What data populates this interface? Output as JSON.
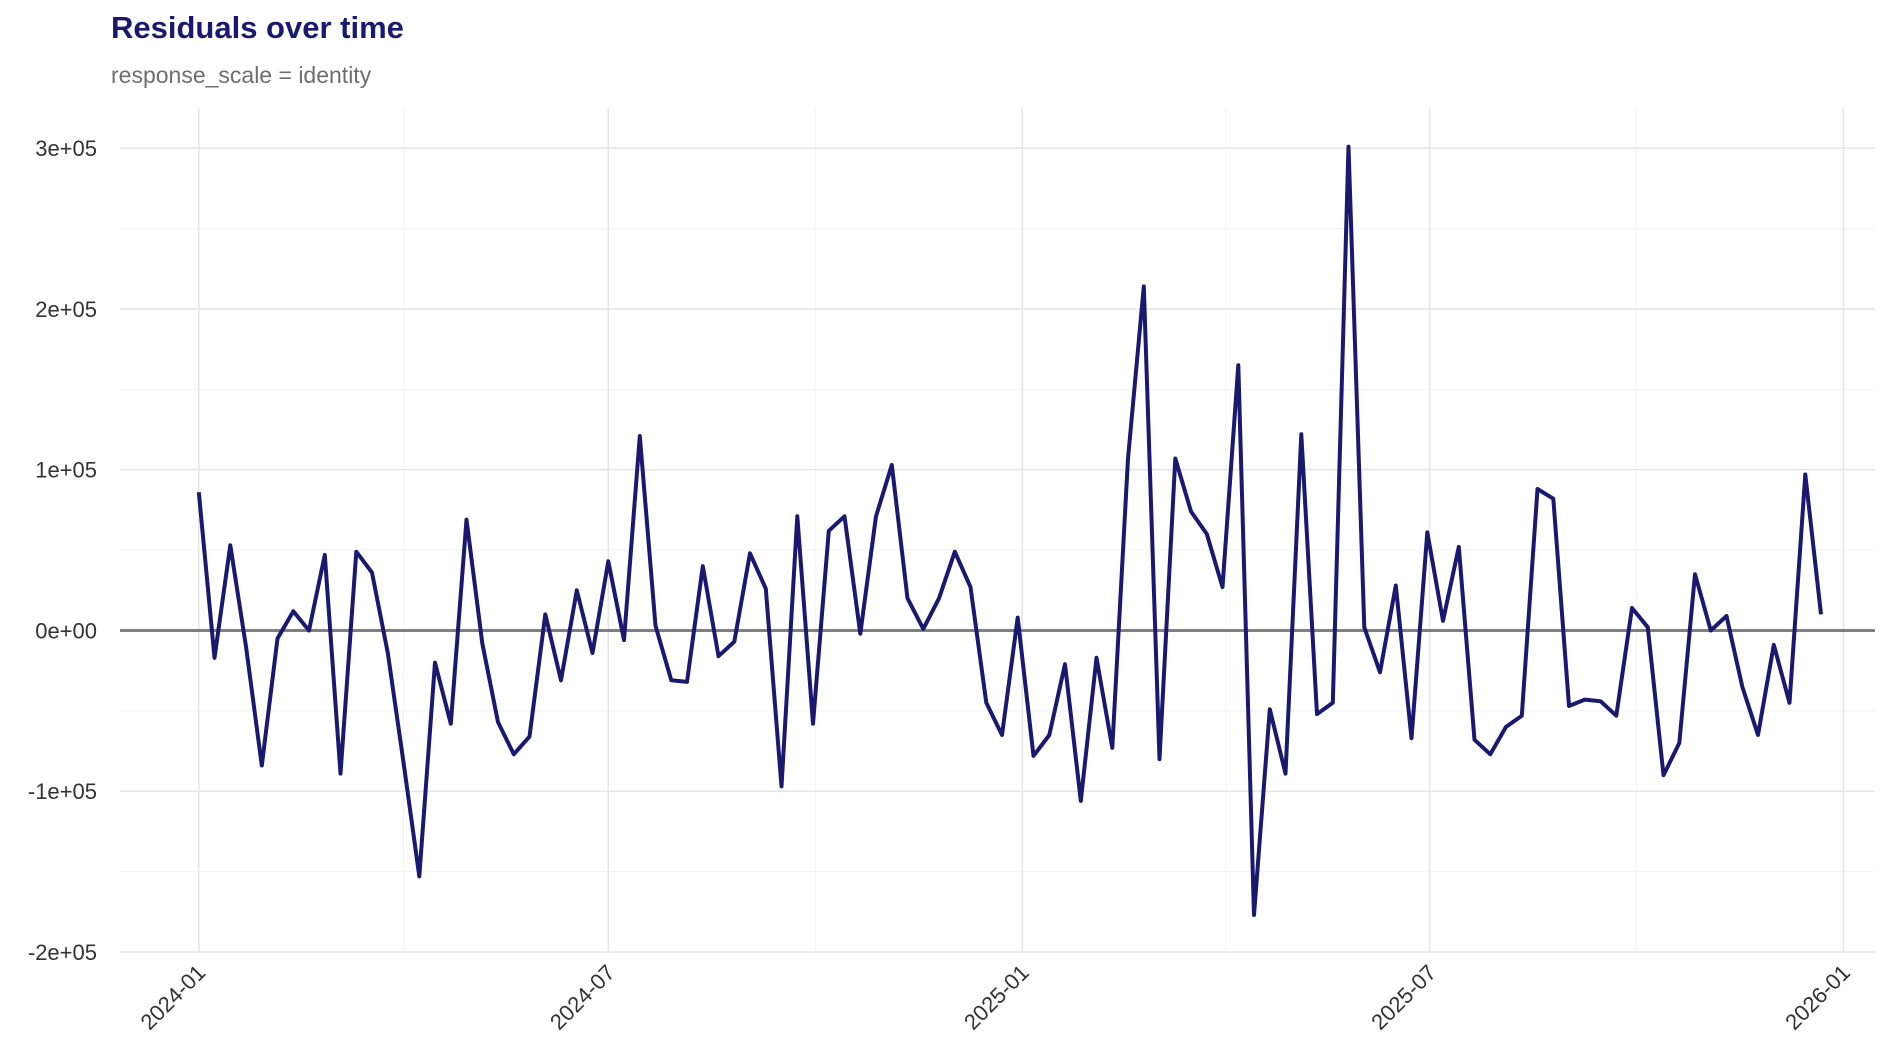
{
  "chart_data": {
    "type": "line",
    "title": "Residuals over time",
    "subtitle": "response_scale = identity",
    "xlabel": "",
    "ylabel": "",
    "x_range": [
      "2023-11-27",
      "2026-01-15"
    ],
    "ylim": [
      -200000,
      325000
    ],
    "x_ticks": [
      "2024-01",
      "2024-07",
      "2025-01",
      "2025-07",
      "2026-01"
    ],
    "x_tick_dates": [
      "2024-01-01",
      "2024-07-01",
      "2025-01-01",
      "2025-07-01",
      "2026-01-01"
    ],
    "y_ticks": [
      -200000,
      -100000,
      0,
      100000,
      200000,
      300000
    ],
    "y_tick_labels": [
      "-2e+05",
      "-1e+05",
      "0e+00",
      "1e+05",
      "2e+05",
      "3e+05"
    ],
    "grid": true,
    "reference_line": 0,
    "line_color": "#191970",
    "reference_color": "#808080",
    "series": [
      {
        "x": [
          "2024-01-01",
          "2024-01-08",
          "2024-01-15",
          "2024-01-22",
          "2024-01-29",
          "2024-02-05",
          "2024-02-12",
          "2024-02-19",
          "2024-02-26",
          "2024-03-04",
          "2024-03-11",
          "2024-03-18",
          "2024-03-25",
          "2024-04-01",
          "2024-04-08",
          "2024-04-15",
          "2024-04-22",
          "2024-04-29",
          "2024-05-06",
          "2024-05-13",
          "2024-05-20",
          "2024-05-27",
          "2024-06-03",
          "2024-06-10",
          "2024-06-17",
          "2024-06-24",
          "2024-07-01",
          "2024-07-08",
          "2024-07-15",
          "2024-07-22",
          "2024-07-29",
          "2024-08-05",
          "2024-08-12",
          "2024-08-19",
          "2024-08-26",
          "2024-09-02",
          "2024-09-09",
          "2024-09-16",
          "2024-09-23",
          "2024-09-30",
          "2024-10-07",
          "2024-10-14",
          "2024-10-21",
          "2024-10-28",
          "2024-11-04",
          "2024-11-11",
          "2024-11-18",
          "2024-11-25",
          "2024-12-02",
          "2024-12-09",
          "2024-12-16",
          "2024-12-23",
          "2024-12-30",
          "2025-01-06",
          "2025-01-13",
          "2025-01-20",
          "2025-01-27",
          "2025-02-03",
          "2025-02-10",
          "2025-02-17",
          "2025-02-24",
          "2025-03-03",
          "2025-03-10",
          "2025-03-17",
          "2025-03-24",
          "2025-03-31",
          "2025-04-07",
          "2025-04-14",
          "2025-04-21",
          "2025-04-28",
          "2025-05-05",
          "2025-05-12",
          "2025-05-19",
          "2025-05-26",
          "2025-06-02",
          "2025-06-09",
          "2025-06-16",
          "2025-06-23",
          "2025-06-30",
          "2025-07-07",
          "2025-07-14",
          "2025-07-21",
          "2025-07-28",
          "2025-08-04",
          "2025-08-11",
          "2025-08-18",
          "2025-08-25",
          "2025-09-01",
          "2025-09-08",
          "2025-09-15",
          "2025-09-22",
          "2025-09-29",
          "2025-10-06",
          "2025-10-13",
          "2025-10-20",
          "2025-10-27",
          "2025-11-03",
          "2025-11-10",
          "2025-11-17",
          "2025-11-24",
          "2025-12-01",
          "2025-12-08",
          "2025-12-15",
          "2025-12-22"
        ],
        "y": [
          86000,
          -17000,
          53000,
          -10000,
          -84000,
          -5000,
          12000,
          0,
          47000,
          -89000,
          49000,
          36000,
          -14000,
          -82000,
          -153000,
          -20000,
          -58000,
          69000,
          -8000,
          -57000,
          -77000,
          -66000,
          10000,
          -31000,
          25000,
          -14000,
          43000,
          -6000,
          121000,
          3000,
          -31000,
          -32000,
          40000,
          -16000,
          -7000,
          48000,
          26000,
          -97000,
          71000,
          -58000,
          62000,
          71000,
          -2000,
          71000,
          103000,
          20000,
          1000,
          20000,
          49000,
          27000,
          -45000,
          -65000,
          8000,
          -78000,
          -65000,
          -21000,
          -106000,
          -17000,
          -73000,
          107000,
          214000,
          -80000,
          107000,
          74000,
          60000,
          27000,
          165000,
          -177000,
          -49000,
          -89000,
          122000,
          -52000,
          -45000,
          301000,
          2000,
          -26000,
          28000,
          -67000,
          61000,
          6000,
          52000,
          -68000,
          -77000,
          -60000,
          -53000,
          88000,
          82000,
          -47000,
          -43000,
          -44000,
          -53000,
          14000,
          2000,
          -90000,
          -70000,
          35000,
          0,
          9000,
          -35000,
          -65000,
          -9000,
          -45000,
          97000,
          10000
        ]
      }
    ]
  }
}
